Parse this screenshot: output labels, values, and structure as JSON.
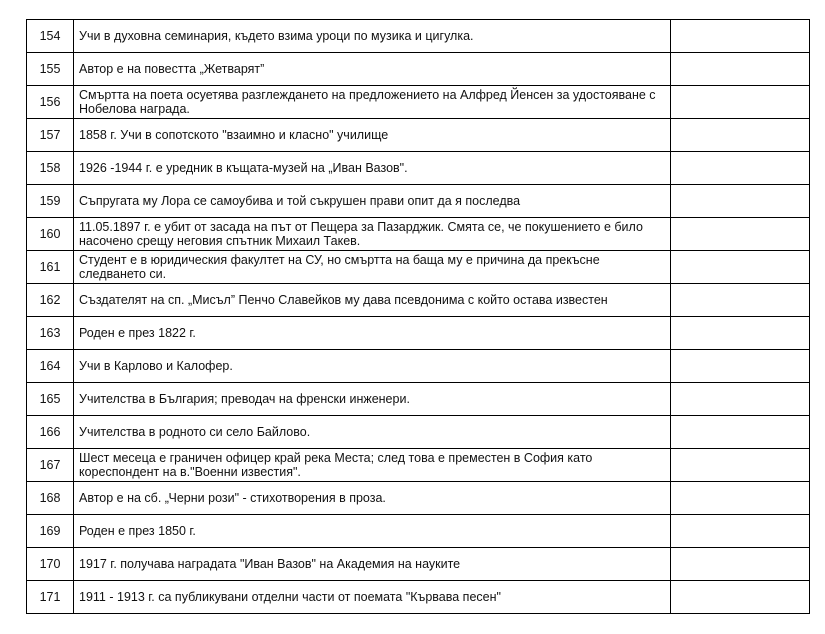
{
  "rows": [
    {
      "num": "154",
      "text": "Учи в духовна семинария, където взима уроци по музика и цигулка."
    },
    {
      "num": "155",
      "text": "Автор е на повестта „Жетварят”"
    },
    {
      "num": "156",
      "text": "Смъртта на поета осуетява разглеждането на предложението на Алфред Йенсен за удостояване с Нобелова награда."
    },
    {
      "num": "157",
      "text": "1858 г. Учи в сопотското \"взаимно и класно\" училище"
    },
    {
      "num": "158",
      "text": "1926 -1944 г. е уредник в къщата-музей на „Иван Вазов\"."
    },
    {
      "num": "159",
      "text": "Съпругата му Лора се самоубива и той съкрушен прави опит да я последва"
    },
    {
      "num": "160",
      "text": "11.05.1897 г. е убит от засада на път от Пещера за Пазарджик. Смята се, че покушението е било насочено срещу неговия спътник Михаил Такев."
    },
    {
      "num": "161",
      "text": "Студент е в юридическия факултет на СУ, но смъртта на баща му е причина да прекъсне следването си."
    },
    {
      "num": "162",
      "text": "Създателят на сп. „Мисъл” Пенчо Славейков му дава псевдонима с който остава известен"
    },
    {
      "num": "163",
      "text": "Роден е през 1822 г."
    },
    {
      "num": "164",
      "text": "Учи в Карлово и Калофер."
    },
    {
      "num": "165",
      "text": "Учителства в България; преводач на френски инженери."
    },
    {
      "num": "166",
      "text": "Учителства в родното си село Байлово."
    },
    {
      "num": "167",
      "text": "Шест месеца е граничен офицер край река Места; след това е преместен в София като кореспондент на в.\"Военни известия\"."
    },
    {
      "num": "168",
      "text": "Автор е на сб. „Черни рози\" - стихотворения в проза."
    },
    {
      "num": "169",
      "text": "Роден е през 1850 г."
    },
    {
      "num": "170",
      "text": "1917 г. получава наградата \"Иван Вазов\" на Академия на науките"
    },
    {
      "num": "171",
      "text": "1911 - 1913 г. са публикувани отделни части от поемата \"Кървава песен\""
    }
  ]
}
